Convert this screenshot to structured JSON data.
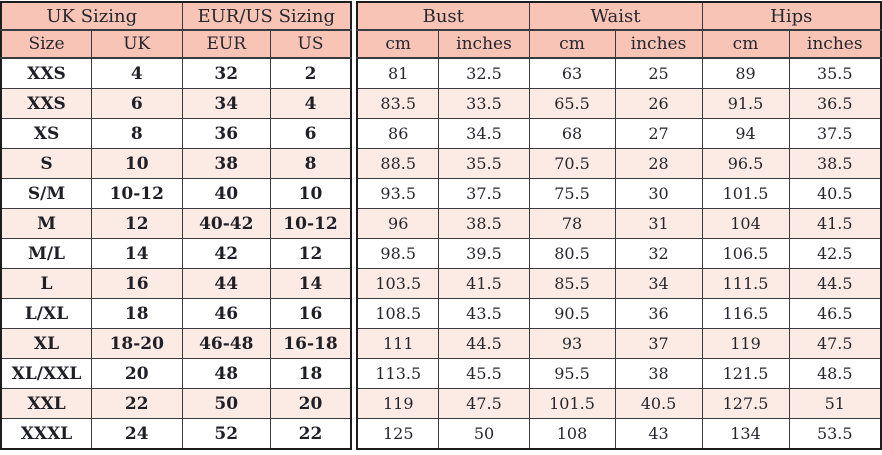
{
  "colors": {
    "header_bg": "#f8c4b6",
    "row_alt_bg": "#fcebe4",
    "row_bg": "#ffffff",
    "outer_border": "#1d1d20",
    "grid_line": "#3a3a3f",
    "text": "#26262e"
  },
  "left_table": {
    "group_headers": [
      "UK Sizing",
      "EUR/US Sizing"
    ],
    "column_headers": [
      "Size",
      "UK",
      "EUR",
      "US"
    ],
    "rows": [
      [
        "XXS",
        "4",
        "32",
        "2"
      ],
      [
        "XXS",
        "6",
        "34",
        "4"
      ],
      [
        "XS",
        "8",
        "36",
        "6"
      ],
      [
        "S",
        "10",
        "38",
        "8"
      ],
      [
        "S/M",
        "10-12",
        "40",
        "10"
      ],
      [
        "M",
        "12",
        "40-42",
        "10-12"
      ],
      [
        "M/L",
        "14",
        "42",
        "12"
      ],
      [
        "L",
        "16",
        "44",
        "14"
      ],
      [
        "L/XL",
        "18",
        "46",
        "16"
      ],
      [
        "XL",
        "18-20",
        "46-48",
        "16-18"
      ],
      [
        "XL/XXL",
        "20",
        "48",
        "18"
      ],
      [
        "XXL",
        "22",
        "50",
        "20"
      ],
      [
        "XXXL",
        "24",
        "52",
        "22"
      ]
    ]
  },
  "right_table": {
    "group_headers": [
      "Bust",
      "Waist",
      "Hips"
    ],
    "column_headers": [
      "cm",
      "inches",
      "cm",
      "inches",
      "cm",
      "inches"
    ],
    "rows": [
      [
        "81",
        "32.5",
        "63",
        "25",
        "89",
        "35.5"
      ],
      [
        "83.5",
        "33.5",
        "65.5",
        "26",
        "91.5",
        "36.5"
      ],
      [
        "86",
        "34.5",
        "68",
        "27",
        "94",
        "37.5"
      ],
      [
        "88.5",
        "35.5",
        "70.5",
        "28",
        "96.5",
        "38.5"
      ],
      [
        "93.5",
        "37.5",
        "75.5",
        "30",
        "101.5",
        "40.5"
      ],
      [
        "96",
        "38.5",
        "78",
        "31",
        "104",
        "41.5"
      ],
      [
        "98.5",
        "39.5",
        "80.5",
        "32",
        "106.5",
        "42.5"
      ],
      [
        "103.5",
        "41.5",
        "85.5",
        "34",
        "111.5",
        "44.5"
      ],
      [
        "108.5",
        "43.5",
        "90.5",
        "36",
        "116.5",
        "46.5"
      ],
      [
        "111",
        "44.5",
        "93",
        "37",
        "119",
        "47.5"
      ],
      [
        "113.5",
        "45.5",
        "95.5",
        "38",
        "121.5",
        "48.5"
      ],
      [
        "119",
        "47.5",
        "101.5",
        "40.5",
        "127.5",
        "51"
      ],
      [
        "125",
        "50",
        "108",
        "43",
        "134",
        "53.5"
      ]
    ]
  }
}
